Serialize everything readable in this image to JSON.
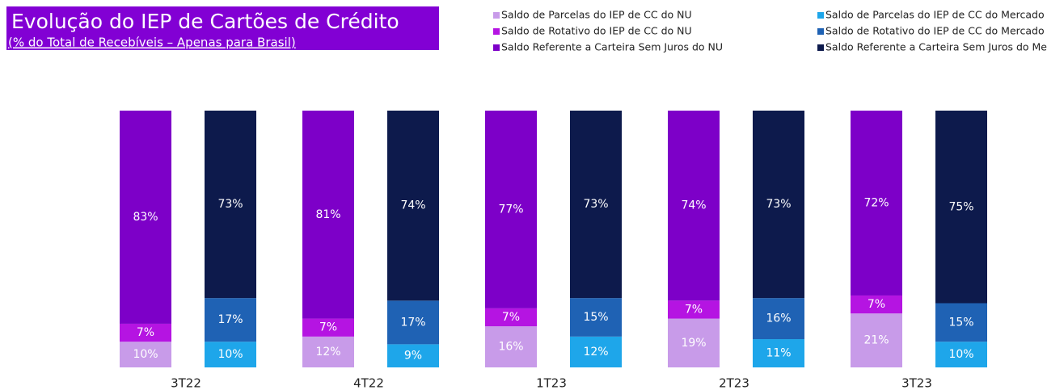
{
  "chart_data": {
    "type": "stacked_grouped_bar",
    "title": "Evolução do IEP de Cartões de Crédito",
    "subtitle": "(% do Total de Recebíveis – Apenas para Brasil)",
    "categories": [
      "3T22",
      "4T22",
      "1T23",
      "2T23",
      "3T23"
    ],
    "series": [
      {
        "name": "Saldo de Parcelas do IEP de CC do NU",
        "color": "#c89be9",
        "values": [
          10,
          12,
          16,
          19,
          21
        ],
        "value_labels": [
          "10%",
          "12%",
          "16%",
          "19%",
          "21%"
        ]
      },
      {
        "name": "Saldo de Rotativo do IEP de CC do NU",
        "color": "#b514e2",
        "values": [
          7,
          7,
          7,
          7,
          7
        ],
        "value_labels": [
          "7%",
          "7%",
          "7%",
          "7%",
          "7%"
        ]
      },
      {
        "name": "Saldo Referente a Carteira Sem Juros do NU",
        "color": "#7d00c8",
        "values": [
          83,
          81,
          77,
          74,
          72
        ],
        "value_labels": [
          "83%",
          "81%",
          "77%",
          "74%",
          "72%"
        ]
      },
      {
        "name": "Saldo de Parcelas do IEP de CC do Mercado",
        "color": "#1ea6ea",
        "values": [
          10,
          9,
          12,
          11,
          10
        ],
        "value_labels": [
          "10%",
          "9%",
          "12%",
          "11%",
          "10%"
        ]
      },
      {
        "name": "Saldo de Rotativo do IEP de CC do Mercado",
        "color": "#1f62b4",
        "values": [
          17,
          17,
          15,
          16,
          15
        ],
        "value_labels": [
          "17%",
          "17%",
          "15%",
          "16%",
          "15%"
        ]
      },
      {
        "name": "Saldo Referente a Carteira Sem Juros do Mercado",
        "color": "#0d1a4c",
        "values": [
          73,
          74,
          73,
          73,
          75
        ],
        "value_labels": [
          "73%",
          "74%",
          "73%",
          "73%",
          "75%"
        ]
      }
    ]
  }
}
